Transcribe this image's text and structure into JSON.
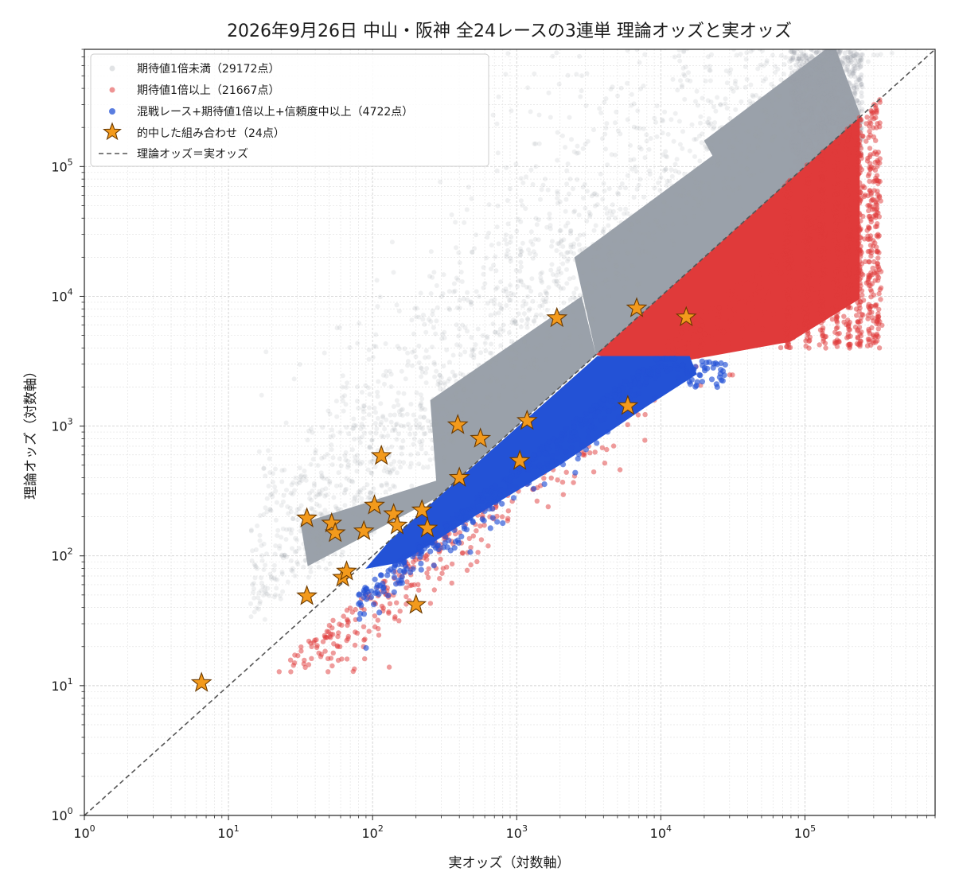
{
  "chart_data": {
    "type": "scatter",
    "title": "2026年9月26日 中山・阪神 全24レースの3連単 理論オッズと実オッズ",
    "xlabel": "実オッズ（対数軸）",
    "ylabel": "理論オッズ（対数軸）",
    "xscale": "log",
    "yscale": "log",
    "xlim": [
      1,
      800000
    ],
    "ylim": [
      1,
      800000
    ],
    "major_ticks": [
      {
        "value": 1,
        "base": "10",
        "exp": "0"
      },
      {
        "value": 10,
        "base": "10",
        "exp": "1"
      },
      {
        "value": 100,
        "base": "10",
        "exp": "2"
      },
      {
        "value": 1000,
        "base": "10",
        "exp": "3"
      },
      {
        "value": 10000,
        "base": "10",
        "exp": "4"
      },
      {
        "value": 100000,
        "base": "10",
        "exp": "5"
      }
    ],
    "grid": true,
    "legend_position": "top-left",
    "series": [
      {
        "name": "期待値1倍未満（29172点）",
        "color": "#9aa1aa",
        "marker": "circle",
        "count": 29172,
        "description": "theory odds above actual odds (above diagonal)"
      },
      {
        "name": "期待値1倍以上（21667点）",
        "color": "#e03a3a",
        "marker": "circle",
        "count": 21667
      },
      {
        "name": "混戦レース+期待値1倍以上+信頼度中以上（4722点）",
        "color": "#2352d6",
        "marker": "circle",
        "count": 4722
      },
      {
        "name": "的中した組み合わせ（24点）",
        "color": "#f39a1c",
        "edge_color": "#6b3a00",
        "marker": "star",
        "count": 24,
        "points": [
          {
            "x": 6.5,
            "y": 10.5
          },
          {
            "x": 35,
            "y": 49
          },
          {
            "x": 35,
            "y": 195
          },
          {
            "x": 52,
            "y": 178
          },
          {
            "x": 55,
            "y": 150
          },
          {
            "x": 62,
            "y": 68
          },
          {
            "x": 66,
            "y": 76
          },
          {
            "x": 87,
            "y": 155
          },
          {
            "x": 103,
            "y": 245
          },
          {
            "x": 115,
            "y": 590
          },
          {
            "x": 140,
            "y": 210
          },
          {
            "x": 148,
            "y": 172
          },
          {
            "x": 200,
            "y": 42
          },
          {
            "x": 220,
            "y": 225
          },
          {
            "x": 240,
            "y": 163
          },
          {
            "x": 390,
            "y": 1020
          },
          {
            "x": 400,
            "y": 400
          },
          {
            "x": 560,
            "y": 800
          },
          {
            "x": 1050,
            "y": 540
          },
          {
            "x": 1180,
            "y": 1100
          },
          {
            "x": 1900,
            "y": 6800
          },
          {
            "x": 5900,
            "y": 1430
          },
          {
            "x": 6800,
            "y": 8100
          },
          {
            "x": 15000,
            "y": 6900
          }
        ]
      },
      {
        "name": "理論オッズ＝実オッズ",
        "color": "#555555",
        "line_style": "dashed",
        "marker": "line"
      }
    ]
  }
}
